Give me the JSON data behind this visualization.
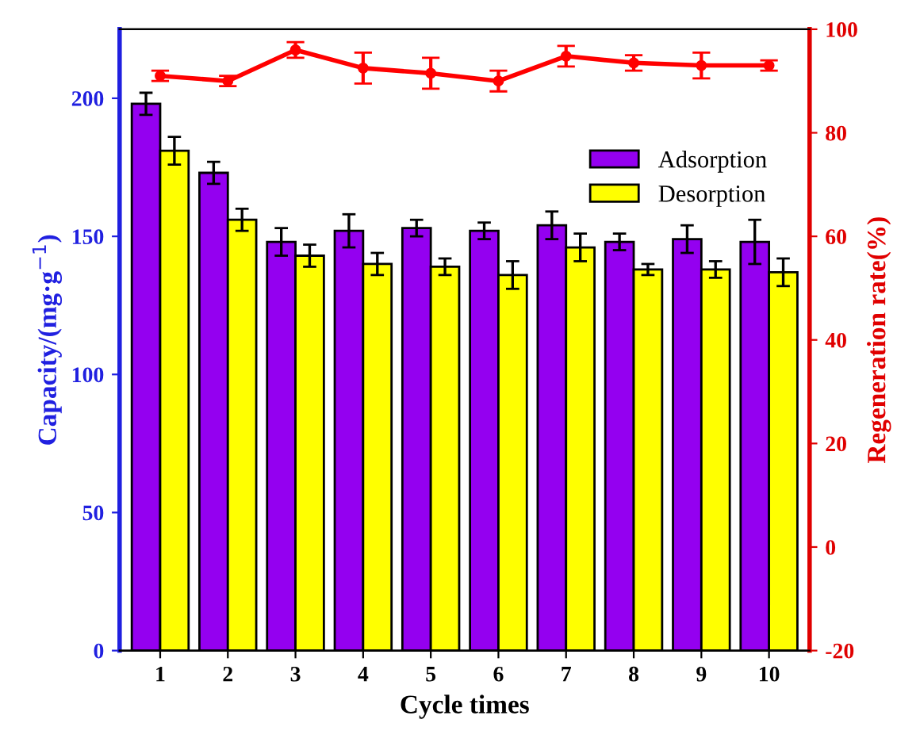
{
  "chart_data": {
    "type": "bar",
    "xlabel": "Cycle times",
    "ylabel": "Capacity/(mg·g$^{−1}$)",
    "y2label": "Regeneration rate(%)",
    "categories": [
      "1",
      "2",
      "3",
      "4",
      "5",
      "6",
      "7",
      "8",
      "9",
      "10"
    ],
    "series": [
      {
        "name": "Adsorption",
        "color": "#9400f0",
        "values": [
          198,
          173,
          148,
          152,
          153,
          152,
          154,
          148,
          149,
          148
        ],
        "errors": [
          4,
          4,
          5,
          6,
          3,
          3,
          5,
          3,
          5,
          8
        ]
      },
      {
        "name": "Desorption",
        "color": "#ffff00",
        "values": [
          181,
          156,
          143,
          140,
          139,
          136,
          146,
          138,
          138,
          137
        ],
        "errors": [
          5,
          4,
          4,
          4,
          3,
          5,
          5,
          2,
          3,
          5
        ]
      },
      {
        "type": "line",
        "axis": "y2",
        "color": "#ff0000",
        "marker": "circle",
        "values": [
          91,
          90,
          96,
          92.5,
          91.5,
          90,
          94.8,
          93.5,
          93,
          93
        ],
        "errors": [
          1,
          1,
          1.5,
          3,
          3,
          2,
          2,
          1.5,
          2.5,
          1
        ]
      }
    ],
    "ylim": [
      0,
      225
    ],
    "yticks": [
      0,
      50,
      100,
      150,
      200
    ],
    "y2lim": [
      -20,
      100
    ],
    "y2ticks": [
      -20,
      0,
      20,
      40,
      60,
      80,
      100
    ],
    "grid": false,
    "legend": "top right"
  }
}
